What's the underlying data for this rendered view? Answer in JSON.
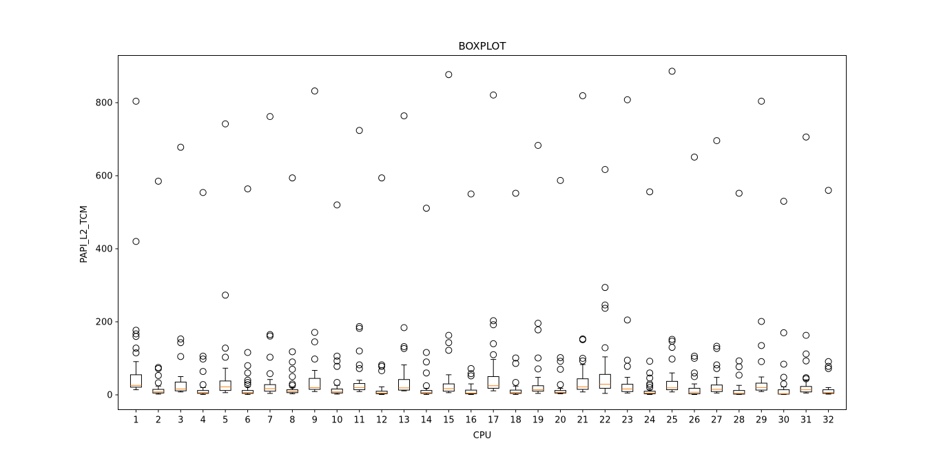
{
  "chart_data": {
    "type": "boxplot",
    "title": "BOXPLOT",
    "xlabel": "CPU",
    "ylabel": "PAPI_L2_TCM",
    "ylim": [
      -40,
      930
    ],
    "yticks": [
      0,
      200,
      400,
      600,
      800
    ],
    "categories": [
      "1",
      "2",
      "3",
      "4",
      "5",
      "6",
      "7",
      "8",
      "9",
      "10",
      "11",
      "12",
      "13",
      "14",
      "15",
      "16",
      "17",
      "18",
      "19",
      "20",
      "21",
      "22",
      "23",
      "24",
      "25",
      "26",
      "27",
      "28",
      "29",
      "30",
      "31",
      "32"
    ],
    "series": [
      {
        "name": "1",
        "whislo": 14,
        "q1": 21,
        "med": 26,
        "q3": 55,
        "whishi": 91,
        "fliers": [
          115,
          128,
          160,
          167,
          177,
          420,
          804
        ]
      },
      {
        "name": "2",
        "whislo": 2,
        "q1": 5,
        "med": 8,
        "q3": 15,
        "whishi": 24,
        "fliers": [
          33,
          53,
          72,
          75,
          585
        ]
      },
      {
        "name": "3",
        "whislo": 8,
        "q1": 11,
        "med": 16,
        "q3": 35,
        "whishi": 50,
        "fliers": [
          105,
          143,
          153,
          678
        ]
      },
      {
        "name": "4",
        "whislo": 1,
        "q1": 4,
        "med": 6,
        "q3": 12,
        "whishi": 20,
        "fliers": [
          28,
          64,
          98,
          106,
          554
        ]
      },
      {
        "name": "5",
        "whislo": 6,
        "q1": 12,
        "med": 22,
        "q3": 38,
        "whishi": 73,
        "fliers": [
          103,
          128,
          273,
          742
        ]
      },
      {
        "name": "6",
        "whislo": 1,
        "q1": 4,
        "med": 6,
        "q3": 12,
        "whishi": 22,
        "fliers": [
          28,
          34,
          40,
          60,
          80,
          116,
          564
        ]
      },
      {
        "name": "7",
        "whislo": 4,
        "q1": 10,
        "med": 17,
        "q3": 28,
        "whishi": 42,
        "fliers": [
          58,
          103,
          161,
          165,
          762
        ]
      },
      {
        "name": "8",
        "whislo": 3,
        "q1": 6,
        "med": 9,
        "q3": 14,
        "whishi": 20,
        "fliers": [
          26,
          30,
          50,
          70,
          90,
          118,
          594
        ]
      },
      {
        "name": "9",
        "whislo": 9,
        "q1": 15,
        "med": 20,
        "q3": 45,
        "whishi": 67,
        "fliers": [
          98,
          145,
          171,
          832
        ]
      },
      {
        "name": "10",
        "whislo": 2,
        "q1": 5,
        "med": 8,
        "q3": 16,
        "whishi": 26,
        "fliers": [
          34,
          78,
          93,
          106,
          520
        ]
      },
      {
        "name": "11",
        "whislo": 9,
        "q1": 14,
        "med": 20,
        "q3": 31,
        "whishi": 40,
        "fliers": [
          72,
          82,
          120,
          182,
          187,
          724
        ]
      },
      {
        "name": "12",
        "whislo": 1,
        "q1": 3,
        "med": 5,
        "q3": 10,
        "whishi": 22,
        "fliers": [
          66,
          78,
          82,
          594
        ]
      },
      {
        "name": "13",
        "whislo": 11,
        "q1": 13,
        "med": 19,
        "q3": 42,
        "whishi": 82,
        "fliers": [
          127,
          132,
          184,
          764
        ]
      },
      {
        "name": "14",
        "whislo": 1,
        "q1": 4,
        "med": 6,
        "q3": 12,
        "whishi": 18,
        "fliers": [
          25,
          60,
          90,
          116,
          511
        ]
      },
      {
        "name": "15",
        "whislo": 6,
        "q1": 10,
        "med": 17,
        "q3": 30,
        "whishi": 55,
        "fliers": [
          122,
          143,
          163,
          877
        ]
      },
      {
        "name": "16",
        "whislo": 1,
        "q1": 3,
        "med": 5,
        "q3": 13,
        "whishi": 30,
        "fliers": [
          52,
          58,
          72,
          550
        ]
      },
      {
        "name": "17",
        "whislo": 11,
        "q1": 18,
        "med": 25,
        "q3": 50,
        "whishi": 97,
        "fliers": [
          110,
          140,
          192,
          203,
          821
        ]
      },
      {
        "name": "18",
        "whislo": 1,
        "q1": 4,
        "med": 6,
        "q3": 13,
        "whishi": 24,
        "fliers": [
          34,
          86,
          101,
          552
        ]
      },
      {
        "name": "19",
        "whislo": 4,
        "q1": 10,
        "med": 14,
        "q3": 25,
        "whishi": 48,
        "fliers": [
          71,
          101,
          178,
          196,
          683
        ]
      },
      {
        "name": "20",
        "whislo": 3,
        "q1": 5,
        "med": 7,
        "q3": 12,
        "whishi": 18,
        "fliers": [
          28,
          70,
          92,
          102,
          587
        ]
      },
      {
        "name": "21",
        "whislo": 8,
        "q1": 15,
        "med": 22,
        "q3": 44,
        "whishi": 83,
        "fliers": [
          93,
          100,
          151,
          153,
          819
        ]
      },
      {
        "name": "22",
        "whislo": 4,
        "q1": 18,
        "med": 29,
        "q3": 56,
        "whishi": 104,
        "fliers": [
          129,
          237,
          246,
          294,
          617
        ]
      },
      {
        "name": "23",
        "whislo": 5,
        "q1": 9,
        "med": 16,
        "q3": 29,
        "whishi": 48,
        "fliers": [
          78,
          95,
          205,
          808
        ]
      },
      {
        "name": "24",
        "whislo": 1,
        "q1": 3,
        "med": 5,
        "q3": 10,
        "whishi": 14,
        "fliers": [
          20,
          26,
          30,
          46,
          60,
          92,
          556
        ]
      },
      {
        "name": "25",
        "whislo": 8,
        "q1": 14,
        "med": 19,
        "q3": 37,
        "whishi": 60,
        "fliers": [
          98,
          130,
          147,
          152,
          886
        ]
      },
      {
        "name": "26",
        "whislo": 1,
        "q1": 3,
        "med": 7,
        "q3": 18,
        "whishi": 30,
        "fliers": [
          50,
          60,
          100,
          106,
          651
        ]
      },
      {
        "name": "27",
        "whislo": 5,
        "q1": 9,
        "med": 15,
        "q3": 27,
        "whishi": 48,
        "fliers": [
          72,
          82,
          127,
          133,
          696
        ]
      },
      {
        "name": "28",
        "whislo": 1,
        "q1": 2,
        "med": 4,
        "q3": 12,
        "whishi": 26,
        "fliers": [
          54,
          77,
          93,
          552
        ]
      },
      {
        "name": "29",
        "whislo": 9,
        "q1": 13,
        "med": 20,
        "q3": 32,
        "whishi": 49,
        "fliers": [
          91,
          135,
          201,
          804
        ]
      },
      {
        "name": "30",
        "whislo": 1,
        "q1": 2,
        "med": 3,
        "q3": 14,
        "whishi": 22,
        "fliers": [
          30,
          48,
          84,
          170,
          530
        ]
      },
      {
        "name": "31",
        "whislo": 5,
        "q1": 8,
        "med": 14,
        "q3": 23,
        "whishi": 41,
        "fliers": [
          44,
          47,
          93,
          112,
          163,
          706
        ]
      },
      {
        "name": "32",
        "whislo": 2,
        "q1": 4,
        "med": 6,
        "q3": 14,
        "whishi": 20,
        "fliers": [
          72,
          78,
          91,
          560
        ]
      }
    ],
    "colors": {
      "box": "#000000",
      "median": "#ff7f0e",
      "axes": "#000000",
      "background": "#ffffff"
    }
  }
}
